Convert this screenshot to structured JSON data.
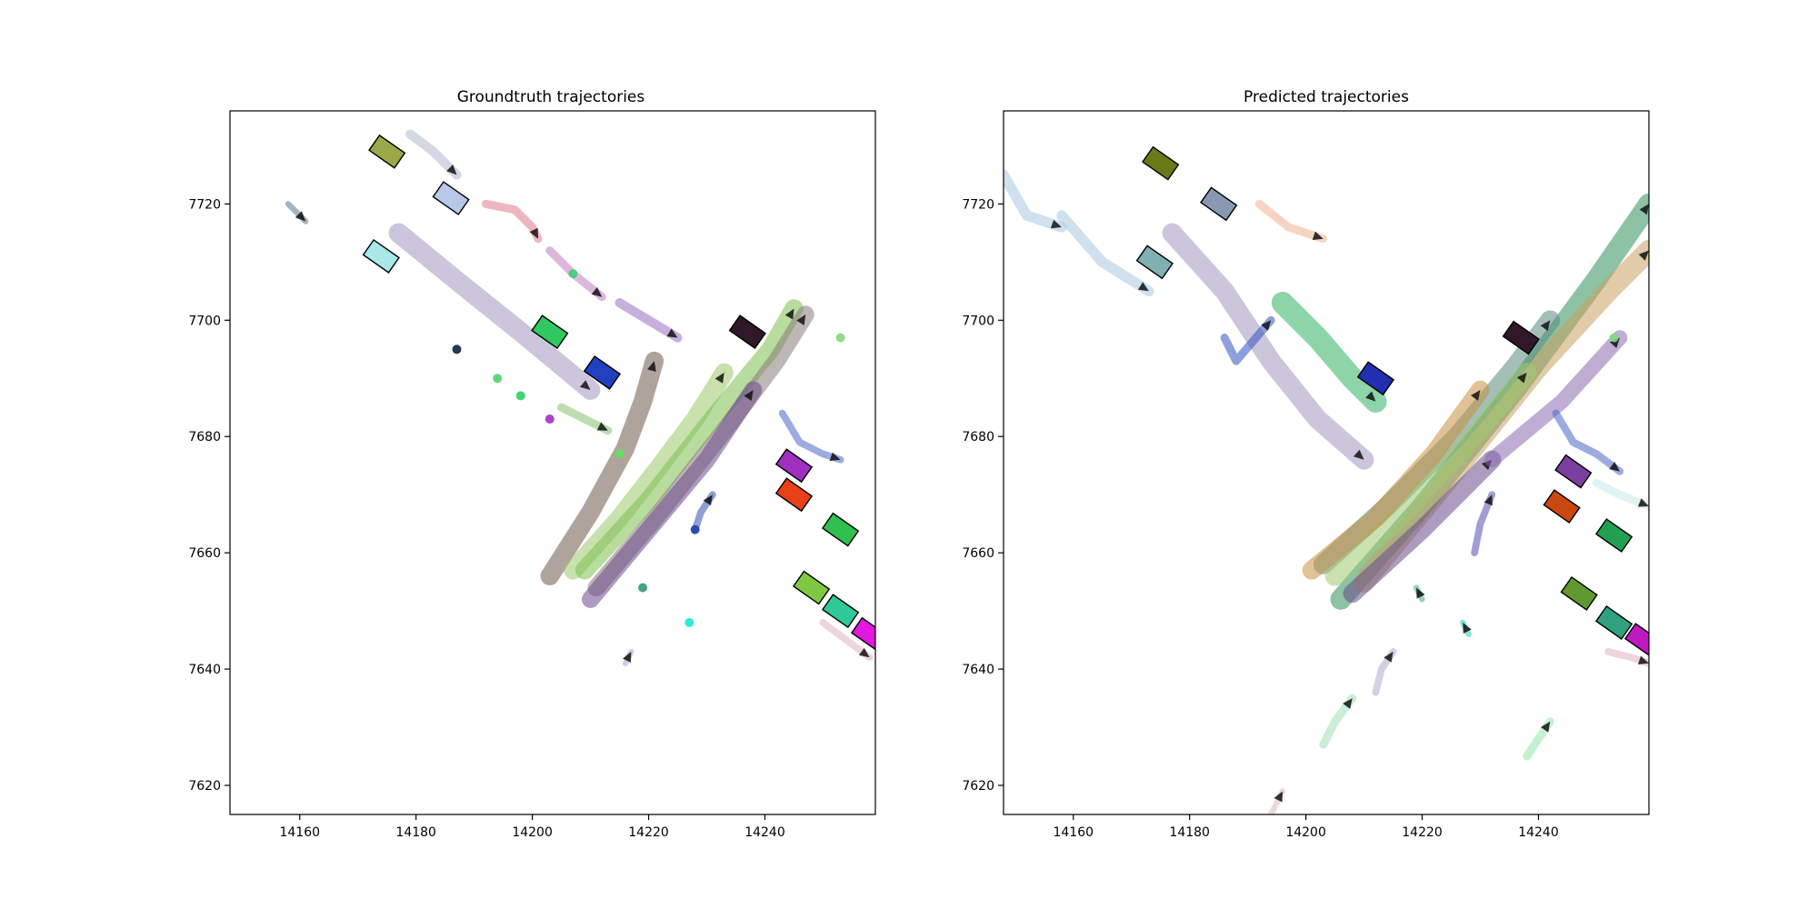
{
  "chart_data": [
    {
      "type": "scatter",
      "title": "Groundtruth trajectories",
      "xlabel": "",
      "ylabel": "",
      "xlim": [
        14148,
        14259
      ],
      "ylim": [
        7615,
        7736
      ],
      "x_ticks": [
        14160,
        14180,
        14200,
        14220,
        14240
      ],
      "y_ticks": [
        7620,
        7640,
        7660,
        7680,
        7700,
        7720
      ],
      "grid": false,
      "trajectories": [
        {
          "color": "#6e5a48",
          "width": 3.2,
          "points": [
            [
              14203,
              7656
            ],
            [
              14210,
              7667
            ],
            [
              14216,
              7678
            ],
            [
              14219,
              7686
            ],
            [
              14221,
              7693
            ]
          ]
        },
        {
          "color": "#9bc86a",
          "width": 3.2,
          "points": [
            [
              14207,
              7657
            ],
            [
              14215,
              7666
            ],
            [
              14222,
              7675
            ],
            [
              14228,
              7683
            ],
            [
              14233,
              7691
            ]
          ]
        },
        {
          "color": "#7cc04e",
          "width": 3.2,
          "points": [
            [
              14209,
              7657
            ],
            [
              14220,
              7669
            ],
            [
              14231,
              7683
            ],
            [
              14241,
              7695
            ],
            [
              14245,
              7702
            ]
          ]
        },
        {
          "color": "#8a7a7a",
          "width": 3.0,
          "points": [
            [
              14211,
              7654
            ],
            [
              14222,
              7667
            ],
            [
              14233,
              7681
            ],
            [
              14242,
              7693
            ],
            [
              14247,
              7701
            ]
          ]
        },
        {
          "color": "#6a4a8a",
          "width": 3.0,
          "points": [
            [
              14210,
              7652
            ],
            [
              14220,
              7664
            ],
            [
              14230,
              7676
            ],
            [
              14238,
              7688
            ]
          ]
        },
        {
          "color": "#a398c0",
          "width": 3.4,
          "points": [
            [
              14177,
              7715
            ],
            [
              14188,
              7706
            ],
            [
              14198,
              7698
            ],
            [
              14210,
              7688
            ]
          ]
        },
        {
          "color": "#b0b8d0",
          "width": 1.6,
          "points": [
            [
              14179,
              7732
            ],
            [
              14183,
              7729
            ],
            [
              14187,
              7725
            ]
          ]
        },
        {
          "color": "#e07a8a",
          "width": 1.4,
          "points": [
            [
              14192,
              7720
            ],
            [
              14197,
              7719
            ],
            [
              14200,
              7716
            ],
            [
              14201,
              7714
            ]
          ]
        },
        {
          "color": "#c080c0",
          "width": 1.4,
          "points": [
            [
              14203,
              7712
            ],
            [
              14207,
              7708
            ],
            [
              14212,
              7704
            ]
          ]
        },
        {
          "color": "#9a70c0",
          "width": 1.6,
          "points": [
            [
              14215,
              7703
            ],
            [
              14220,
              7700
            ],
            [
              14225,
              7697
            ]
          ]
        },
        {
          "color": "#88c070",
          "width": 1.4,
          "points": [
            [
              14205,
              7685
            ],
            [
              14209,
              7683
            ],
            [
              14213,
              7681
            ]
          ]
        },
        {
          "color": "#4a68c8",
          "width": 1.2,
          "points": [
            [
              14243,
              7684
            ],
            [
              14246,
              7679
            ],
            [
              14250,
              7677
            ],
            [
              14253,
              7676
            ]
          ]
        },
        {
          "color": "#3050b0",
          "width": 1.2,
          "points": [
            [
              14228,
              7664
            ],
            [
              14229,
              7667
            ],
            [
              14231,
              7670
            ]
          ]
        },
        {
          "color": "#e0b0c0",
          "width": 1.2,
          "points": [
            [
              14250,
              7648
            ],
            [
              14254,
              7645
            ],
            [
              14258,
              7642
            ]
          ]
        },
        {
          "color": "#b0a8d0",
          "width": 1.0,
          "points": [
            [
              14216,
              7641
            ],
            [
              14217,
              7643
            ]
          ]
        },
        {
          "color": "#5a7a90",
          "width": 1.0,
          "points": [
            [
              14158,
              7720
            ],
            [
              14161,
              7717
            ]
          ]
        }
      ],
      "vehicles": [
        {
          "x": 14175,
          "y": 7729,
          "color": "#9aa848"
        },
        {
          "x": 14186,
          "y": 7721,
          "color": "#b8c8e8"
        },
        {
          "x": 14174,
          "y": 7711,
          "color": "#a8e8e8"
        },
        {
          "x": 14203,
          "y": 7698,
          "color": "#30c860"
        },
        {
          "x": 14212,
          "y": 7691,
          "color": "#2040c0"
        },
        {
          "x": 14237,
          "y": 7698,
          "color": "#301828"
        },
        {
          "x": 14245,
          "y": 7675,
          "color": "#a030c0"
        },
        {
          "x": 14245,
          "y": 7670,
          "color": "#e84018"
        },
        {
          "x": 14253,
          "y": 7664,
          "color": "#30c050"
        },
        {
          "x": 14248,
          "y": 7654,
          "color": "#80c840"
        },
        {
          "x": 14253,
          "y": 7650,
          "color": "#30c898"
        },
        {
          "x": 14258,
          "y": 7646,
          "color": "#e018e0"
        }
      ],
      "agents": [
        {
          "x": 14187,
          "y": 7695,
          "color": "#102040"
        },
        {
          "x": 14194,
          "y": 7690,
          "color": "#50d070"
        },
        {
          "x": 14198,
          "y": 7687,
          "color": "#30d060"
        },
        {
          "x": 14203,
          "y": 7683,
          "color": "#a030c0"
        },
        {
          "x": 14207,
          "y": 7708,
          "color": "#40d070"
        },
        {
          "x": 14228,
          "y": 7664,
          "color": "#2040b0"
        },
        {
          "x": 14219,
          "y": 7654,
          "color": "#309880"
        },
        {
          "x": 14227,
          "y": 7648,
          "color": "#18e8d0"
        },
        {
          "x": 14253,
          "y": 7697,
          "color": "#80d880"
        },
        {
          "x": 14215,
          "y": 7677,
          "color": "#60e060"
        }
      ]
    },
    {
      "type": "scatter",
      "title": "Predicted trajectories",
      "xlabel": "",
      "ylabel": "",
      "xlim": [
        14148,
        14259
      ],
      "ylim": [
        7615,
        7736
      ],
      "x_ticks": [
        14160,
        14180,
        14200,
        14220,
        14240
      ],
      "y_ticks": [
        7620,
        7640,
        7660,
        7680,
        7700,
        7720
      ],
      "grid": false,
      "trajectories": [
        {
          "color": "#2f8f5a",
          "width": 3.6,
          "points": [
            [
              14206,
              7652
            ],
            [
              14220,
              7668
            ],
            [
              14236,
              7688
            ],
            [
              14250,
              7707
            ],
            [
              14259,
              7720
            ]
          ]
        },
        {
          "color": "#c8a060",
          "width": 3.6,
          "points": [
            [
              14210,
              7655
            ],
            [
              14224,
              7672
            ],
            [
              14240,
              7692
            ],
            [
              14252,
              7705
            ],
            [
              14259,
              7712
            ]
          ]
        },
        {
          "color": "#5a8a80",
          "width": 3.4,
          "points": [
            [
              14203,
              7658
            ],
            [
              14214,
              7668
            ],
            [
              14226,
              7680
            ],
            [
              14236,
              7692
            ],
            [
              14242,
              7700
            ]
          ]
        },
        {
          "color": "#a0c870",
          "width": 3.4,
          "points": [
            [
              14205,
              7656
            ],
            [
              14216,
              7666
            ],
            [
              14228,
              7679
            ],
            [
              14238,
              7691
            ]
          ]
        },
        {
          "color": "#c89040",
          "width": 3.2,
          "points": [
            [
              14201,
              7657
            ],
            [
              14212,
              7666
            ],
            [
              14222,
              7677
            ],
            [
              14230,
              7688
            ]
          ]
        },
        {
          "color": "#6a4a8a",
          "width": 3.2,
          "points": [
            [
              14208,
              7653
            ],
            [
              14220,
              7664
            ],
            [
              14232,
              7676
            ]
          ]
        },
        {
          "color": "#8a6ab0",
          "width": 2.6,
          "points": [
            [
              14232,
              7676
            ],
            [
              14244,
              7686
            ],
            [
              14254,
              7697
            ]
          ]
        },
        {
          "color": "#a398c0",
          "width": 3.4,
          "points": [
            [
              14177,
              7715
            ],
            [
              14186,
              7705
            ],
            [
              14194,
              7693
            ],
            [
              14202,
              7683
            ],
            [
              14210,
              7676
            ]
          ]
        },
        {
          "color": "#30b060",
          "width": 3.8,
          "points": [
            [
              14196,
              7703
            ],
            [
              14202,
              7697
            ],
            [
              14208,
              7690
            ],
            [
              14212,
              7686
            ]
          ]
        },
        {
          "color": "#a8c8e0",
          "width": 1.8,
          "points": [
            [
              14148,
              7725
            ],
            [
              14152,
              7718
            ],
            [
              14158,
              7716
            ]
          ]
        },
        {
          "color": "#a8c8e0",
          "width": 1.8,
          "points": [
            [
              14158,
              7718
            ],
            [
              14165,
              7710
            ],
            [
              14173,
              7705
            ]
          ]
        },
        {
          "color": "#f0b090",
          "width": 1.4,
          "points": [
            [
              14192,
              7720
            ],
            [
              14197,
              7716
            ],
            [
              14203,
              7714
            ]
          ]
        },
        {
          "color": "#3050c0",
          "width": 1.4,
          "points": [
            [
              14186,
              7697
            ],
            [
              14188,
              7693
            ],
            [
              14194,
              7700
            ]
          ]
        },
        {
          "color": "#4a68c8",
          "width": 1.3,
          "points": [
            [
              14243,
              7684
            ],
            [
              14246,
              7679
            ],
            [
              14250,
              7677
            ],
            [
              14254,
              7674
            ]
          ]
        },
        {
          "color": "#c8e8e8",
          "width": 1.4,
          "points": [
            [
              14250,
              7672
            ],
            [
              14254,
              7670
            ],
            [
              14259,
              7668
            ]
          ]
        },
        {
          "color": "#5050b0",
          "width": 1.2,
          "points": [
            [
              14229,
              7660
            ],
            [
              14230,
              7665
            ],
            [
              14232,
              7670
            ]
          ]
        },
        {
          "color": "#e0b0c0",
          "width": 1.2,
          "points": [
            [
              14252,
              7643
            ],
            [
              14256,
              7642
            ],
            [
              14259,
              7641
            ]
          ]
        },
        {
          "color": "#a0e0b0",
          "width": 1.4,
          "points": [
            [
              14203,
              7627
            ],
            [
              14205,
              7631
            ],
            [
              14208,
              7635
            ]
          ]
        },
        {
          "color": "#90e8a8",
          "width": 1.4,
          "points": [
            [
              14238,
              7625
            ],
            [
              14240,
              7628
            ],
            [
              14242,
              7631
            ]
          ]
        },
        {
          "color": "#40b080",
          "width": 1.0,
          "points": [
            [
              14220,
              7652
            ],
            [
              14219,
              7654
            ]
          ]
        },
        {
          "color": "#20d0c0",
          "width": 1.0,
          "points": [
            [
              14228,
              7646
            ],
            [
              14227,
              7648
            ]
          ]
        },
        {
          "color": "#b0a8d0",
          "width": 1.2,
          "points": [
            [
              14212,
              7636
            ],
            [
              14213,
              7640
            ],
            [
              14215,
              7643
            ]
          ]
        },
        {
          "color": "#d8c0b0",
          "width": 1.0,
          "points": [
            [
              14194,
              7615
            ],
            [
              14196,
              7619
            ]
          ]
        }
      ],
      "vehicles": [
        {
          "x": 14175,
          "y": 7727,
          "color": "#6a7a18"
        },
        {
          "x": 14185,
          "y": 7720,
          "color": "#8898b0"
        },
        {
          "x": 14174,
          "y": 7710,
          "color": "#80b0b0"
        },
        {
          "x": 14212,
          "y": 7690,
          "color": "#2030b0"
        },
        {
          "x": 14237,
          "y": 7697,
          "color": "#301828"
        },
        {
          "x": 14246,
          "y": 7674,
          "color": "#7a40a0"
        },
        {
          "x": 14244,
          "y": 7668,
          "color": "#c84810"
        },
        {
          "x": 14253,
          "y": 7663,
          "color": "#20a050"
        },
        {
          "x": 14247,
          "y": 7653,
          "color": "#609830"
        },
        {
          "x": 14253,
          "y": 7648,
          "color": "#30a080"
        },
        {
          "x": 14258,
          "y": 7645,
          "color": "#c018c0"
        }
      ],
      "agents": [
        {
          "x": 14253,
          "y": 7697,
          "color": "#80d880"
        }
      ]
    }
  ]
}
